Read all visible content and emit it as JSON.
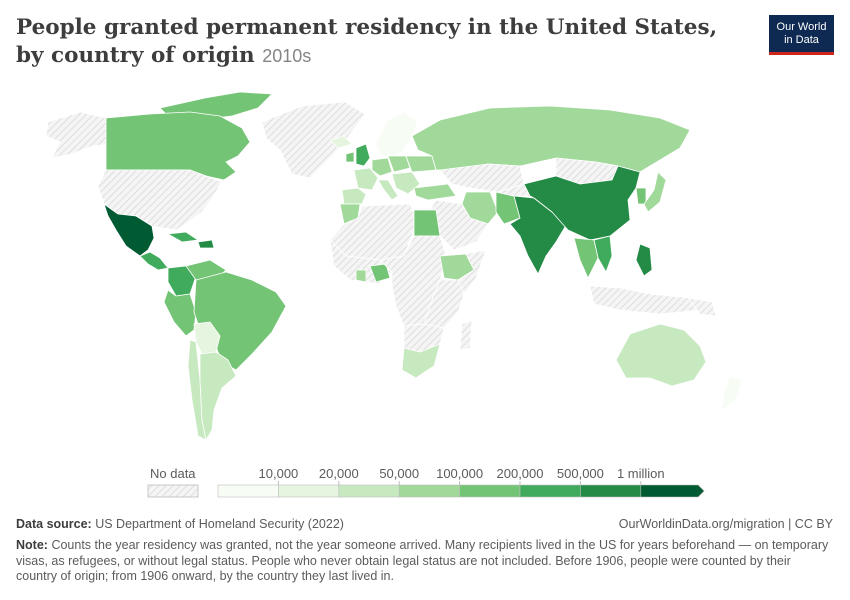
{
  "header": {
    "title": "People granted permanent residency in the United States, by country of origin",
    "period": "2010s",
    "logo_line1": "Our World",
    "logo_line2": "in Data"
  },
  "legend": {
    "no_data_label": "No data",
    "thresholds": [
      "10,000",
      "20,000",
      "50,000",
      "100,000",
      "200,000",
      "500,000",
      "1 million"
    ],
    "colors": [
      "#f7fcf5",
      "#e5f5e0",
      "#c7e9c0",
      "#a1d99b",
      "#74c476",
      "#41ab5d",
      "#238b45",
      "#005a32"
    ]
  },
  "footer": {
    "source_label": "Data source:",
    "source_text": "US Department of Homeland Security (2022)",
    "url": "OurWorldinData.org/migration | CC BY",
    "note_label": "Note:",
    "note_text": "Counts the year residency was granted, not the year someone arrived. Many recipients lived in the US for years beforehand — on temporary visas, as refugees, or without legal status. People who never obtain legal status are not included. Before 1906, people were counted by their country of origin; from 1906 onward, by the country they last lived in."
  },
  "map_colors": {
    "no_data": "#eeeeee",
    "border": "#ffffff"
  }
}
